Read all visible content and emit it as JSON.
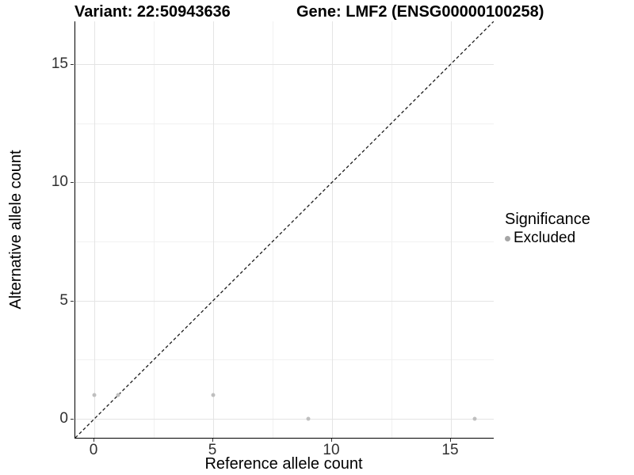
{
  "chart_data": {
    "type": "scatter",
    "titles": [
      "Variant: 22:50943636",
      "Gene: LMF2 (ENSG00000100258)"
    ],
    "xlabel": "Reference allele count",
    "ylabel": "Alternative allele count",
    "xlim": [
      -0.8,
      16.8
    ],
    "ylim": [
      -0.8,
      16.8
    ],
    "x_major_ticks": [
      0,
      5,
      10,
      15
    ],
    "y_major_ticks": [
      0,
      5,
      10,
      15
    ],
    "x_minor_gridlines": [
      2.5,
      7.5,
      12.5
    ],
    "y_minor_gridlines": [
      2.5,
      7.5,
      12.5
    ],
    "grid": "on",
    "series": [
      {
        "name": "Excluded",
        "color": "#bfbfbf",
        "points": [
          [
            0,
            1
          ],
          [
            1,
            1
          ],
          [
            5,
            1
          ],
          [
            9,
            0
          ],
          [
            16,
            0
          ]
        ]
      }
    ],
    "reference_line": {
      "type": "identity y=x",
      "style": "dashed",
      "color": "#1a1a1a"
    },
    "legend": {
      "position": "right",
      "title": "Significance",
      "items": [
        {
          "label": "Excluded",
          "marker": "circle",
          "color": "#a6a6a6"
        }
      ]
    }
  },
  "colors": {
    "background": "#ffffff",
    "axis_line": "#000000",
    "tick_mark": "#333333",
    "tick_label": "#303030",
    "grid_major": "#e4e4e4",
    "grid_minor": "#f1f1f1"
  }
}
